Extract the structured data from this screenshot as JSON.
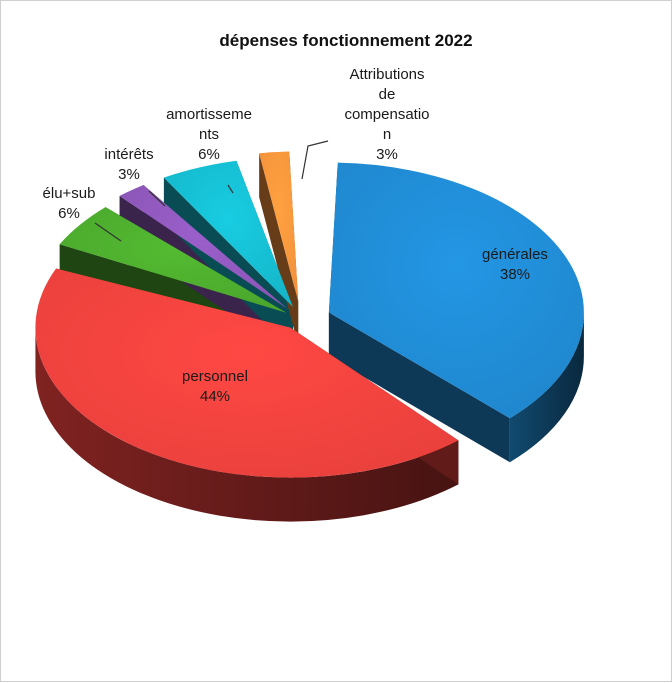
{
  "chart_data": {
    "type": "pie",
    "style": "3d-exploded",
    "title": "dépenses fonctionnement 2022",
    "slices": [
      {
        "name": "générales",
        "label_lines": [
          "générales"
        ],
        "value": 38,
        "value_label": "38%",
        "color": "#1f86cc"
      },
      {
        "name": "personnel",
        "label_lines": [
          "personnel"
        ],
        "value": 44,
        "value_label": "44%",
        "color": "#e8403c"
      },
      {
        "name": "élu+sub",
        "label_lines": [
          "élu+sub"
        ],
        "value": 6,
        "value_label": "6%",
        "color": "#4aa62c"
      },
      {
        "name": "intérêts",
        "label_lines": [
          "intérêts"
        ],
        "value": 3,
        "value_label": "3%",
        "color": "#8a55b5"
      },
      {
        "name": "amortissements",
        "label_lines": [
          "amortisseme",
          "nts"
        ],
        "value": 6,
        "value_label": "6%",
        "color": "#15b6c9"
      },
      {
        "name": "Attributions de compensation",
        "label_lines": [
          "Attributions",
          "de",
          "compensatio",
          "n"
        ],
        "value": 3,
        "value_label": "3%",
        "color": "#f2913a"
      }
    ],
    "legend": "none"
  }
}
